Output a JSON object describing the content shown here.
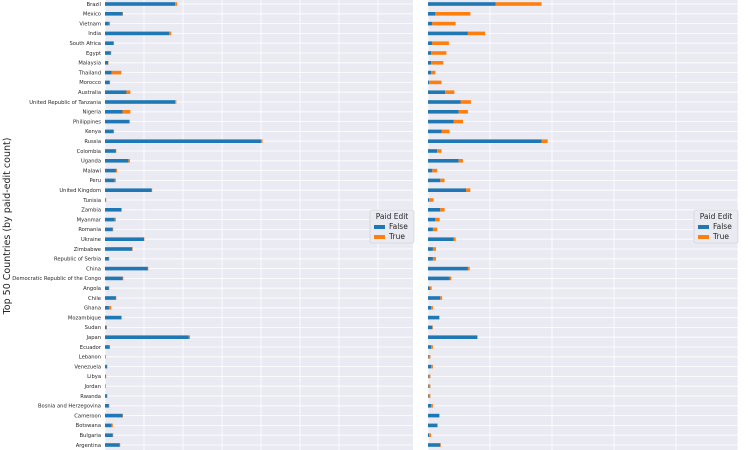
{
  "chart_data": {
    "type": "bar",
    "orientation": "horizontal",
    "stacked": true,
    "ylabel": "Top 50 Countries (by paid-edit count)",
    "grid": true,
    "legend_title": "Paid Edit",
    "legend_position": "right",
    "colors": {
      "False": "#1f77b4",
      "True": "#ff7f0e",
      "background": "#eaeaf2",
      "grid": "#ffffff"
    },
    "categories": [
      "Brazil",
      "Mexico",
      "Vietnam",
      "India",
      "South Africa",
      "Egypt",
      "Malaysia",
      "Thailand",
      "Morocco",
      "Australia",
      "United Republic of Tanzania",
      "Nigeria",
      "Philippines",
      "Kenya",
      "Russia",
      "Colombia",
      "Uganda",
      "Malawi",
      "Peru",
      "United Kingdom",
      "Tunisia",
      "Zambia",
      "Myanmar",
      "Romania",
      "Ukraine",
      "Zimbabwe",
      "Republic of Serbia",
      "China",
      "Democratic Republic of the Congo",
      "Angola",
      "Chile",
      "Ghana",
      "Mozambique",
      "Sudan",
      "Japan",
      "Ecuador",
      "Lebanon",
      "Venezuela",
      "Libya",
      "Jordan",
      "Rwanda",
      "Bosnia and Herzegovina",
      "Cameroon",
      "Botswana",
      "Bulgaria",
      "Argentina"
    ],
    "panels": [
      {
        "xlim": [
          0,
          790
        ],
        "series": [
          {
            "name": "False",
            "values": [
              180,
              45,
              10,
              165,
              22,
              15,
              8,
              17,
              12,
              55,
              180,
              45,
              62,
              22,
              400,
              28,
              60,
              28,
              25,
              120,
              2,
              42,
              25,
              20,
              100,
              70,
              10,
              110,
              45,
              10,
              28,
              10,
              42,
              4,
              215,
              12,
              1,
              5,
              2,
              1,
              5,
              10,
              45,
              17,
              20,
              38
            ]
          },
          {
            "name": "True",
            "values": [
              5,
              1,
              3,
              5,
              1,
              1,
              1,
              25,
              1,
              10,
              3,
              20,
              2,
              1,
              4,
              1,
              4,
              3,
              3,
              1,
              1,
              1,
              3,
              1,
              1,
              1,
              1,
              1,
              2,
              1,
              1,
              6,
              1,
              1,
              3,
              1,
              1,
              1,
              1,
              1,
              1,
              1,
              1,
              3,
              1,
              1
            ]
          }
        ]
      },
      {
        "xlim": [
          0,
          5.05
        ],
        "series": [
          {
            "name": "False",
            "values": [
              1.1,
              0.12,
              0.07,
              0.65,
              0.07,
              0.05,
              0.05,
              0.05,
              0.02,
              0.28,
              0.53,
              0.5,
              0.42,
              0.22,
              1.85,
              0.15,
              0.5,
              0.07,
              0.2,
              0.62,
              0.02,
              0.2,
              0.12,
              0.08,
              0.42,
              0.08,
              0.08,
              0.65,
              0.35,
              0.03,
              0.2,
              0.05,
              0.18,
              0.07,
              0.8,
              0.05,
              0.01,
              0.05,
              0.01,
              0.01,
              0.01,
              0.05,
              0.18,
              0.15,
              0.02,
              0.2
            ]
          },
          {
            "name": "True",
            "values": [
              0.75,
              0.57,
              0.38,
              0.28,
              0.27,
              0.25,
              0.2,
              0.07,
              0.2,
              0.15,
              0.17,
              0.15,
              0.15,
              0.13,
              0.1,
              0.07,
              0.07,
              0.08,
              0.07,
              0.07,
              0.07,
              0.07,
              0.07,
              0.07,
              0.03,
              0.05,
              0.05,
              0.03,
              0.03,
              0.03,
              0.03,
              0.03,
              0.01,
              0.01,
              0.01,
              0.03,
              0.03,
              0.03,
              0.03,
              0.03,
              0.03,
              0.03,
              0.01,
              0.01,
              0.03,
              0.01
            ]
          }
        ]
      }
    ]
  }
}
